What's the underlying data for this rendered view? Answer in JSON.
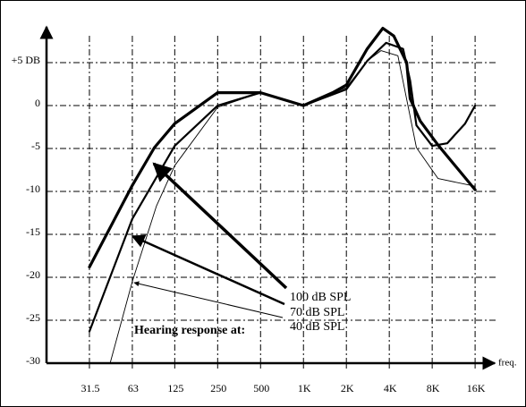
{
  "chart_data": {
    "type": "line",
    "x_label": "freq.",
    "log_x": true,
    "grid": true,
    "xlim": [
      15.75,
      22600
    ],
    "ylim": [
      -30,
      9
    ],
    "xticks": [
      31.5,
      63,
      125,
      250,
      500,
      {
        "value": 1000,
        "label": "1K"
      },
      {
        "value": 2000,
        "label": "2K"
      },
      {
        "value": 4000,
        "label": "4K"
      },
      {
        "value": 8000,
        "label": "8K"
      },
      {
        "value": 16000,
        "label": "16K"
      }
    ],
    "yticks": [
      -30,
      -25,
      -20,
      -15,
      -10,
      -5,
      0,
      {
        "value": 5,
        "label": "+5 DB"
      }
    ],
    "legend_title": "Hearing response at:",
    "series": [
      {
        "name": "100 dB SPL",
        "color": "#000000",
        "x": [
          31.5,
          63,
          90,
          125,
          250,
          500,
          1000,
          1600,
          2000,
          2800,
          3600,
          4300,
          5300,
          5600,
          6600,
          8800,
          16000
        ],
        "values": [
          -18.8,
          -9.3,
          -4.9,
          -2.1,
          1.5,
          1.5,
          0,
          1.5,
          2.4,
          6.6,
          9,
          8.1,
          5,
          0.8,
          -1.8,
          -4.6,
          -9.8
        ]
      },
      {
        "name": "70 dB SPL",
        "color": "#000000",
        "x": [
          31.5,
          63,
          125,
          250,
          500,
          1000,
          2000,
          2800,
          3800,
          5000,
          5600,
          6200,
          8000,
          10200,
          13600,
          16000
        ],
        "values": [
          -26.3,
          -13.2,
          -4.7,
          0,
          1.5,
          0,
          1.9,
          5.2,
          7.3,
          6.6,
          2.9,
          -2.3,
          -4.7,
          -4.4,
          -2.1,
          0
        ]
      },
      {
        "name": "40 dB SPL",
        "color": "#000000",
        "x": [
          44,
          63,
          93,
          125,
          250,
          500,
          1000,
          2000,
          2800,
          3500,
          4600,
          6200,
          8800,
          16000
        ],
        "values": [
          -30,
          -20.5,
          -11.7,
          -7,
          -0.2,
          1.5,
          0,
          2.1,
          5.2,
          6.4,
          5.8,
          -4.9,
          -8.5,
          -9.4
        ]
      }
    ]
  }
}
